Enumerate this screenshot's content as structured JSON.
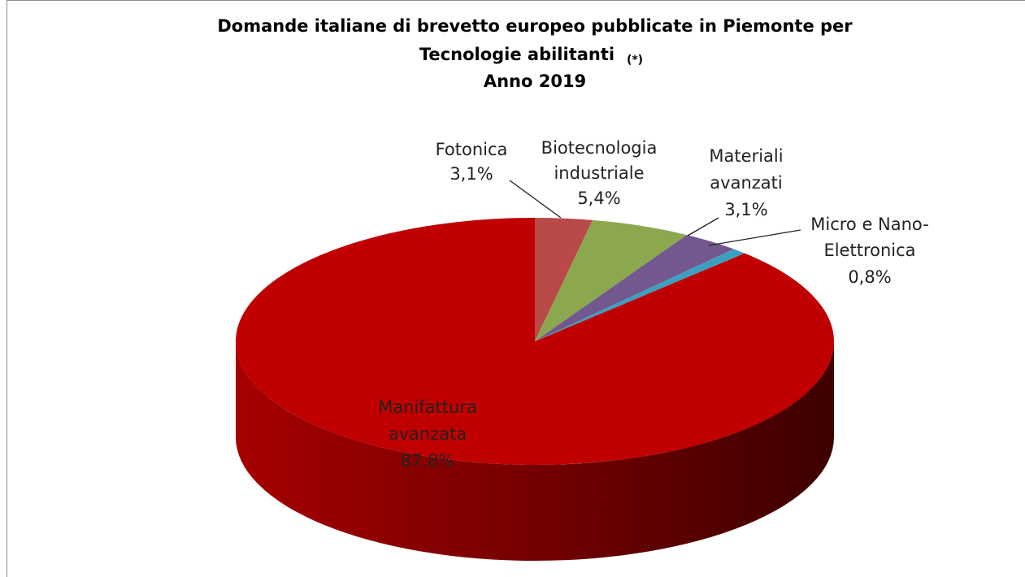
{
  "chart_data": {
    "type": "pie",
    "title": [
      "Domande italiane di brevetto europeo pubblicate in Piemonte per",
      "Tecnologie abilitanti"
    ],
    "title_note": "(*)",
    "subtitle": "Anno 2019",
    "categories": [
      [
        "Fotonica"
      ],
      [
        "Biotecnologia",
        "industriale"
      ],
      [
        "Materiali",
        "avanzati"
      ],
      [
        "Micro e Nano-",
        "Elettronica"
      ],
      [
        "Manifattura",
        "avanzata"
      ]
    ],
    "values": [
      3.1,
      5.4,
      3.1,
      0.8,
      87.8
    ],
    "value_labels": [
      "3,1%",
      "5,4%",
      "3,1%",
      "0,8%",
      "87,8%"
    ],
    "colors": [
      "#b94a47",
      "#8ba84e",
      "#72588e",
      "#3d9fbf",
      "#c00000"
    ]
  }
}
